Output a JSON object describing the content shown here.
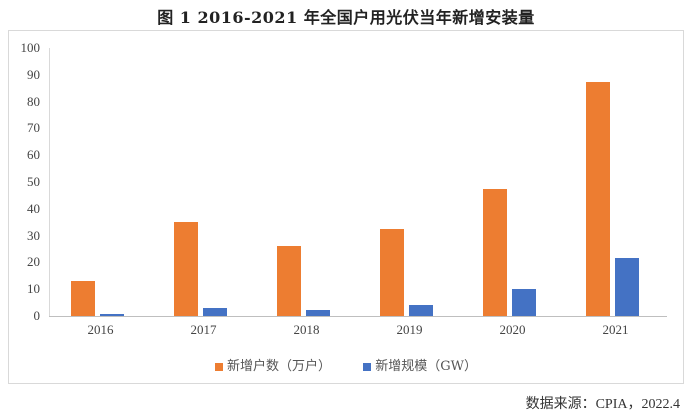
{
  "title": "图 1 2016-2021 年全国户用光伏当年新增安装量",
  "source": "数据来源：CPIA，2022.4",
  "colors": {
    "households": "#ED7D31",
    "capacity": "#4472C4"
  },
  "chart_data": {
    "type": "bar",
    "title": "图 1 2016-2021 年全国户用光伏当年新增安装量",
    "categories": [
      "2016",
      "2017",
      "2018",
      "2019",
      "2020",
      "2021"
    ],
    "series": [
      {
        "name": "新增户数（万户）",
        "color": "#ED7D31",
        "values": [
          13,
          35,
          26,
          32.5,
          47.5,
          87.5
        ]
      },
      {
        "name": "新增规模（GW）",
        "color": "#4472C4",
        "values": [
          0.6,
          2.9,
          2.2,
          4.1,
          10.1,
          21.6
        ]
      }
    ],
    "xlabel": "",
    "ylabel": "",
    "ylim": [
      0,
      100
    ],
    "yticks": [
      "0",
      "10",
      "20",
      "30",
      "40",
      "50",
      "60",
      "70",
      "80",
      "90",
      "100"
    ],
    "grid": false,
    "legend_position": "bottom"
  }
}
